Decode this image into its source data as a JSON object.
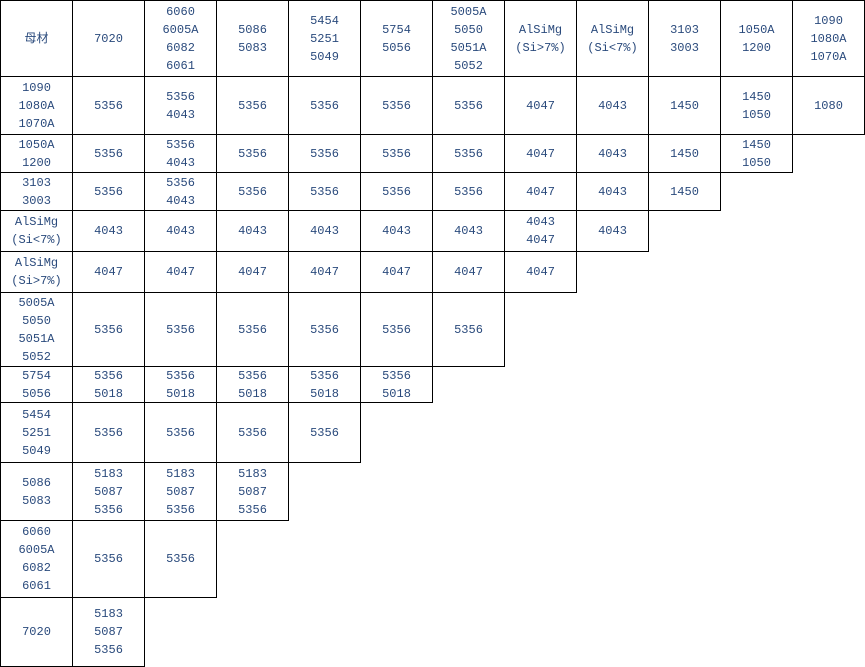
{
  "table": {
    "header": [
      [
        "母材"
      ],
      [
        "7020"
      ],
      [
        "6060",
        "6005A",
        "6082",
        "6061"
      ],
      [
        "5086",
        "5083"
      ],
      [
        "5454",
        "5251",
        "5049"
      ],
      [
        "5754",
        "5056"
      ],
      [
        "5005A",
        "5050",
        "5051A",
        "5052"
      ],
      [
        "AlSiMg",
        "(Si>7%)"
      ],
      [
        "AlSiMg",
        "(Si<7%)"
      ],
      [
        "3103",
        "3003"
      ],
      [
        "1050A",
        "1200"
      ],
      [
        "1090",
        "1080A",
        "1070A"
      ]
    ],
    "rows": [
      {
        "label": [
          "1090",
          "1080A",
          "1070A"
        ],
        "cells": [
          [
            "5356"
          ],
          [
            "5356",
            "4043"
          ],
          [
            "5356"
          ],
          [
            "5356"
          ],
          [
            "5356"
          ],
          [
            "5356"
          ],
          [
            "4047"
          ],
          [
            "4043"
          ],
          [
            "1450"
          ],
          [
            "1450",
            "1050"
          ],
          [
            "1080"
          ]
        ]
      },
      {
        "label": [
          "1050A",
          "1200"
        ],
        "cells": [
          [
            "5356"
          ],
          [
            "5356",
            "4043"
          ],
          [
            "5356"
          ],
          [
            "5356"
          ],
          [
            "5356"
          ],
          [
            "5356"
          ],
          [
            "4047"
          ],
          [
            "4043"
          ],
          [
            "1450"
          ],
          [
            "1450",
            "1050"
          ]
        ]
      },
      {
        "label": [
          "3103",
          "3003"
        ],
        "cells": [
          [
            "5356"
          ],
          [
            "5356",
            "4043"
          ],
          [
            "5356"
          ],
          [
            "5356"
          ],
          [
            "5356"
          ],
          [
            "5356"
          ],
          [
            "4047"
          ],
          [
            "4043"
          ],
          [
            "1450"
          ]
        ]
      },
      {
        "label": [
          "AlSiMg",
          "(Si<7%)"
        ],
        "cells": [
          [
            "4043"
          ],
          [
            "4043"
          ],
          [
            "4043"
          ],
          [
            "4043"
          ],
          [
            "4043"
          ],
          [
            "4043"
          ],
          [
            "4043",
            "4047"
          ],
          [
            "4043"
          ]
        ]
      },
      {
        "label": [
          "AlSiMg",
          "(Si>7%)"
        ],
        "cells": [
          [
            "4047"
          ],
          [
            "4047"
          ],
          [
            "4047"
          ],
          [
            "4047"
          ],
          [
            "4047"
          ],
          [
            "4047"
          ],
          [
            "4047"
          ]
        ]
      },
      {
        "label": [
          "5005A",
          "5050",
          "5051A",
          "5052"
        ],
        "cells": [
          [
            "5356"
          ],
          [
            "5356"
          ],
          [
            "5356"
          ],
          [
            "5356"
          ],
          [
            "5356"
          ],
          [
            "5356"
          ]
        ]
      },
      {
        "label": [
          "5754",
          "5056"
        ],
        "cells": [
          [
            "5356",
            "5018"
          ],
          [
            "5356",
            "5018"
          ],
          [
            "5356",
            "5018"
          ],
          [
            "5356",
            "5018"
          ],
          [
            "5356",
            "5018"
          ]
        ]
      },
      {
        "label": [
          "5454",
          "5251",
          "5049"
        ],
        "cells": [
          [
            "5356"
          ],
          [
            "5356"
          ],
          [
            "5356"
          ],
          [
            "5356"
          ]
        ]
      },
      {
        "label": [
          "5086",
          "5083"
        ],
        "cells": [
          [
            "5183",
            "5087",
            "5356"
          ],
          [
            "5183",
            "5087",
            "5356"
          ],
          [
            "5183",
            "5087",
            "5356"
          ]
        ]
      },
      {
        "label": [
          "6060",
          "6005A",
          "6082",
          "6061"
        ],
        "cells": [
          [
            "5356"
          ],
          [
            "5356"
          ]
        ]
      },
      {
        "label": [
          "7020"
        ],
        "cells": [
          [
            "5183",
            "5087",
            "5356"
          ]
        ]
      }
    ]
  }
}
